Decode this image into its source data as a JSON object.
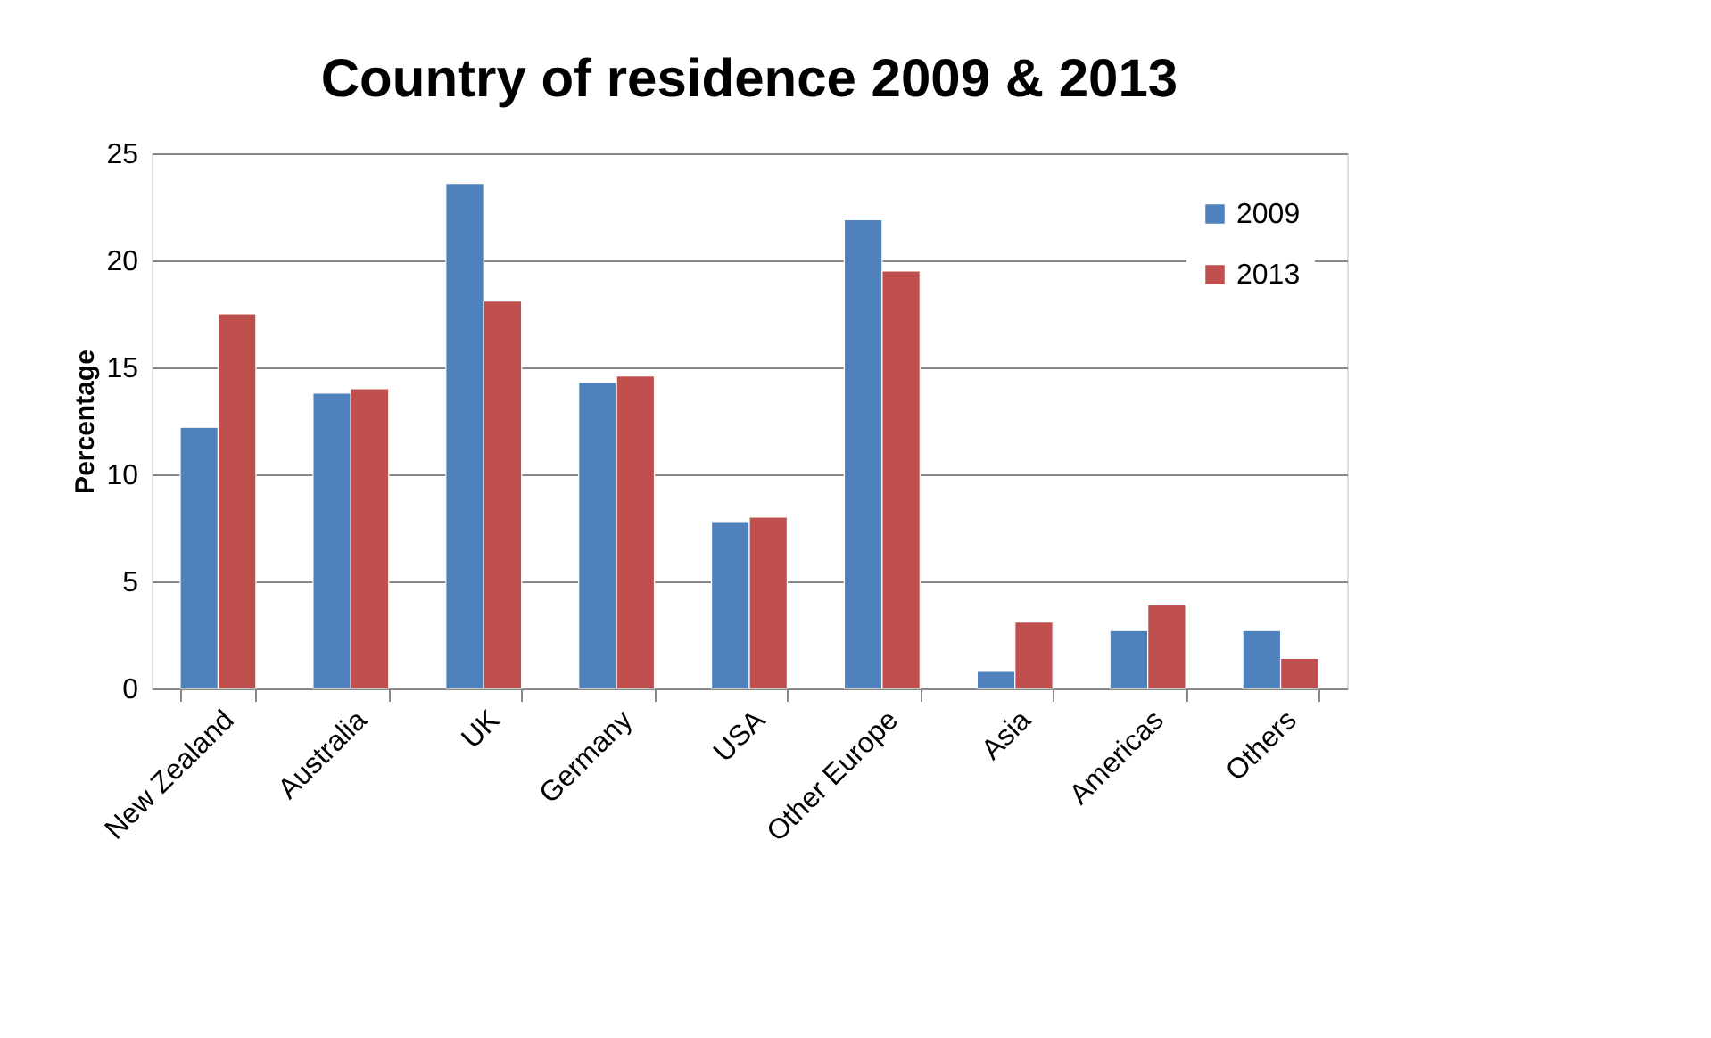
{
  "chart_data": {
    "type": "bar",
    "title": "Country of residence 2009 & 2013",
    "ylabel": "Percentage",
    "categories": [
      "New Zealand",
      "Australia",
      "UK",
      "Germany",
      "USA",
      "Other Europe",
      "Asia",
      "Americas",
      "Others"
    ],
    "series": [
      {
        "name": "2009",
        "color": "#4f81bd",
        "values": [
          12.2,
          13.8,
          23.6,
          14.3,
          7.8,
          21.9,
          0.8,
          2.7,
          2.7
        ]
      },
      {
        "name": "2013",
        "color": "#c0504d",
        "values": [
          17.5,
          14.0,
          18.1,
          14.6,
          8.0,
          19.5,
          3.1,
          3.9,
          1.4
        ]
      }
    ],
    "ylim": [
      0,
      25
    ],
    "yticks": [
      0,
      5,
      10,
      15,
      20,
      25
    ],
    "grid": "y",
    "legend": "top right"
  }
}
